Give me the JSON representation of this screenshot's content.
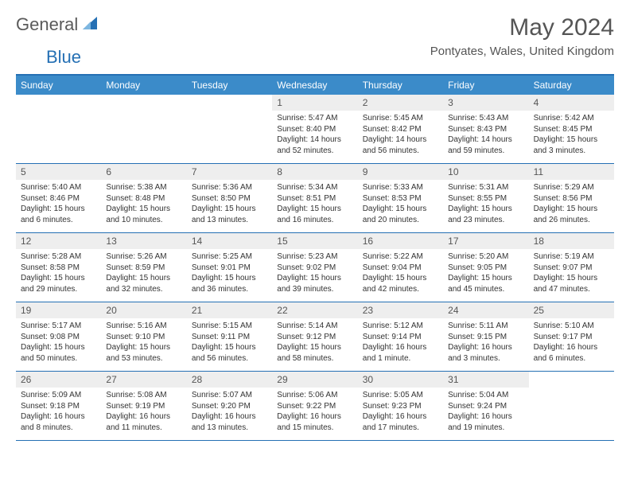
{
  "logo": {
    "general": "General",
    "blue": "Blue"
  },
  "title": "May 2024",
  "location": "Pontyates, Wales, United Kingdom",
  "colors": {
    "header_bg": "#3b8bc9",
    "border": "#2570b4",
    "daynum_bg": "#eeeeee",
    "text_muted": "#555555",
    "text_body": "#333333"
  },
  "weekdays": [
    "Sunday",
    "Monday",
    "Tuesday",
    "Wednesday",
    "Thursday",
    "Friday",
    "Saturday"
  ],
  "weeks": [
    [
      {
        "empty": true
      },
      {
        "empty": true
      },
      {
        "empty": true
      },
      {
        "num": "1",
        "sunrise": "Sunrise: 5:47 AM",
        "sunset": "Sunset: 8:40 PM",
        "daylight": "Daylight: 14 hours and 52 minutes."
      },
      {
        "num": "2",
        "sunrise": "Sunrise: 5:45 AM",
        "sunset": "Sunset: 8:42 PM",
        "daylight": "Daylight: 14 hours and 56 minutes."
      },
      {
        "num": "3",
        "sunrise": "Sunrise: 5:43 AM",
        "sunset": "Sunset: 8:43 PM",
        "daylight": "Daylight: 14 hours and 59 minutes."
      },
      {
        "num": "4",
        "sunrise": "Sunrise: 5:42 AM",
        "sunset": "Sunset: 8:45 PM",
        "daylight": "Daylight: 15 hours and 3 minutes."
      }
    ],
    [
      {
        "num": "5",
        "sunrise": "Sunrise: 5:40 AM",
        "sunset": "Sunset: 8:46 PM",
        "daylight": "Daylight: 15 hours and 6 minutes."
      },
      {
        "num": "6",
        "sunrise": "Sunrise: 5:38 AM",
        "sunset": "Sunset: 8:48 PM",
        "daylight": "Daylight: 15 hours and 10 minutes."
      },
      {
        "num": "7",
        "sunrise": "Sunrise: 5:36 AM",
        "sunset": "Sunset: 8:50 PM",
        "daylight": "Daylight: 15 hours and 13 minutes."
      },
      {
        "num": "8",
        "sunrise": "Sunrise: 5:34 AM",
        "sunset": "Sunset: 8:51 PM",
        "daylight": "Daylight: 15 hours and 16 minutes."
      },
      {
        "num": "9",
        "sunrise": "Sunrise: 5:33 AM",
        "sunset": "Sunset: 8:53 PM",
        "daylight": "Daylight: 15 hours and 20 minutes."
      },
      {
        "num": "10",
        "sunrise": "Sunrise: 5:31 AM",
        "sunset": "Sunset: 8:55 PM",
        "daylight": "Daylight: 15 hours and 23 minutes."
      },
      {
        "num": "11",
        "sunrise": "Sunrise: 5:29 AM",
        "sunset": "Sunset: 8:56 PM",
        "daylight": "Daylight: 15 hours and 26 minutes."
      }
    ],
    [
      {
        "num": "12",
        "sunrise": "Sunrise: 5:28 AM",
        "sunset": "Sunset: 8:58 PM",
        "daylight": "Daylight: 15 hours and 29 minutes."
      },
      {
        "num": "13",
        "sunrise": "Sunrise: 5:26 AM",
        "sunset": "Sunset: 8:59 PM",
        "daylight": "Daylight: 15 hours and 32 minutes."
      },
      {
        "num": "14",
        "sunrise": "Sunrise: 5:25 AM",
        "sunset": "Sunset: 9:01 PM",
        "daylight": "Daylight: 15 hours and 36 minutes."
      },
      {
        "num": "15",
        "sunrise": "Sunrise: 5:23 AM",
        "sunset": "Sunset: 9:02 PM",
        "daylight": "Daylight: 15 hours and 39 minutes."
      },
      {
        "num": "16",
        "sunrise": "Sunrise: 5:22 AM",
        "sunset": "Sunset: 9:04 PM",
        "daylight": "Daylight: 15 hours and 42 minutes."
      },
      {
        "num": "17",
        "sunrise": "Sunrise: 5:20 AM",
        "sunset": "Sunset: 9:05 PM",
        "daylight": "Daylight: 15 hours and 45 minutes."
      },
      {
        "num": "18",
        "sunrise": "Sunrise: 5:19 AM",
        "sunset": "Sunset: 9:07 PM",
        "daylight": "Daylight: 15 hours and 47 minutes."
      }
    ],
    [
      {
        "num": "19",
        "sunrise": "Sunrise: 5:17 AM",
        "sunset": "Sunset: 9:08 PM",
        "daylight": "Daylight: 15 hours and 50 minutes."
      },
      {
        "num": "20",
        "sunrise": "Sunrise: 5:16 AM",
        "sunset": "Sunset: 9:10 PM",
        "daylight": "Daylight: 15 hours and 53 minutes."
      },
      {
        "num": "21",
        "sunrise": "Sunrise: 5:15 AM",
        "sunset": "Sunset: 9:11 PM",
        "daylight": "Daylight: 15 hours and 56 minutes."
      },
      {
        "num": "22",
        "sunrise": "Sunrise: 5:14 AM",
        "sunset": "Sunset: 9:12 PM",
        "daylight": "Daylight: 15 hours and 58 minutes."
      },
      {
        "num": "23",
        "sunrise": "Sunrise: 5:12 AM",
        "sunset": "Sunset: 9:14 PM",
        "daylight": "Daylight: 16 hours and 1 minute."
      },
      {
        "num": "24",
        "sunrise": "Sunrise: 5:11 AM",
        "sunset": "Sunset: 9:15 PM",
        "daylight": "Daylight: 16 hours and 3 minutes."
      },
      {
        "num": "25",
        "sunrise": "Sunrise: 5:10 AM",
        "sunset": "Sunset: 9:17 PM",
        "daylight": "Daylight: 16 hours and 6 minutes."
      }
    ],
    [
      {
        "num": "26",
        "sunrise": "Sunrise: 5:09 AM",
        "sunset": "Sunset: 9:18 PM",
        "daylight": "Daylight: 16 hours and 8 minutes."
      },
      {
        "num": "27",
        "sunrise": "Sunrise: 5:08 AM",
        "sunset": "Sunset: 9:19 PM",
        "daylight": "Daylight: 16 hours and 11 minutes."
      },
      {
        "num": "28",
        "sunrise": "Sunrise: 5:07 AM",
        "sunset": "Sunset: 9:20 PM",
        "daylight": "Daylight: 16 hours and 13 minutes."
      },
      {
        "num": "29",
        "sunrise": "Sunrise: 5:06 AM",
        "sunset": "Sunset: 9:22 PM",
        "daylight": "Daylight: 16 hours and 15 minutes."
      },
      {
        "num": "30",
        "sunrise": "Sunrise: 5:05 AM",
        "sunset": "Sunset: 9:23 PM",
        "daylight": "Daylight: 16 hours and 17 minutes."
      },
      {
        "num": "31",
        "sunrise": "Sunrise: 5:04 AM",
        "sunset": "Sunset: 9:24 PM",
        "daylight": "Daylight: 16 hours and 19 minutes."
      },
      {
        "empty": true
      }
    ]
  ]
}
